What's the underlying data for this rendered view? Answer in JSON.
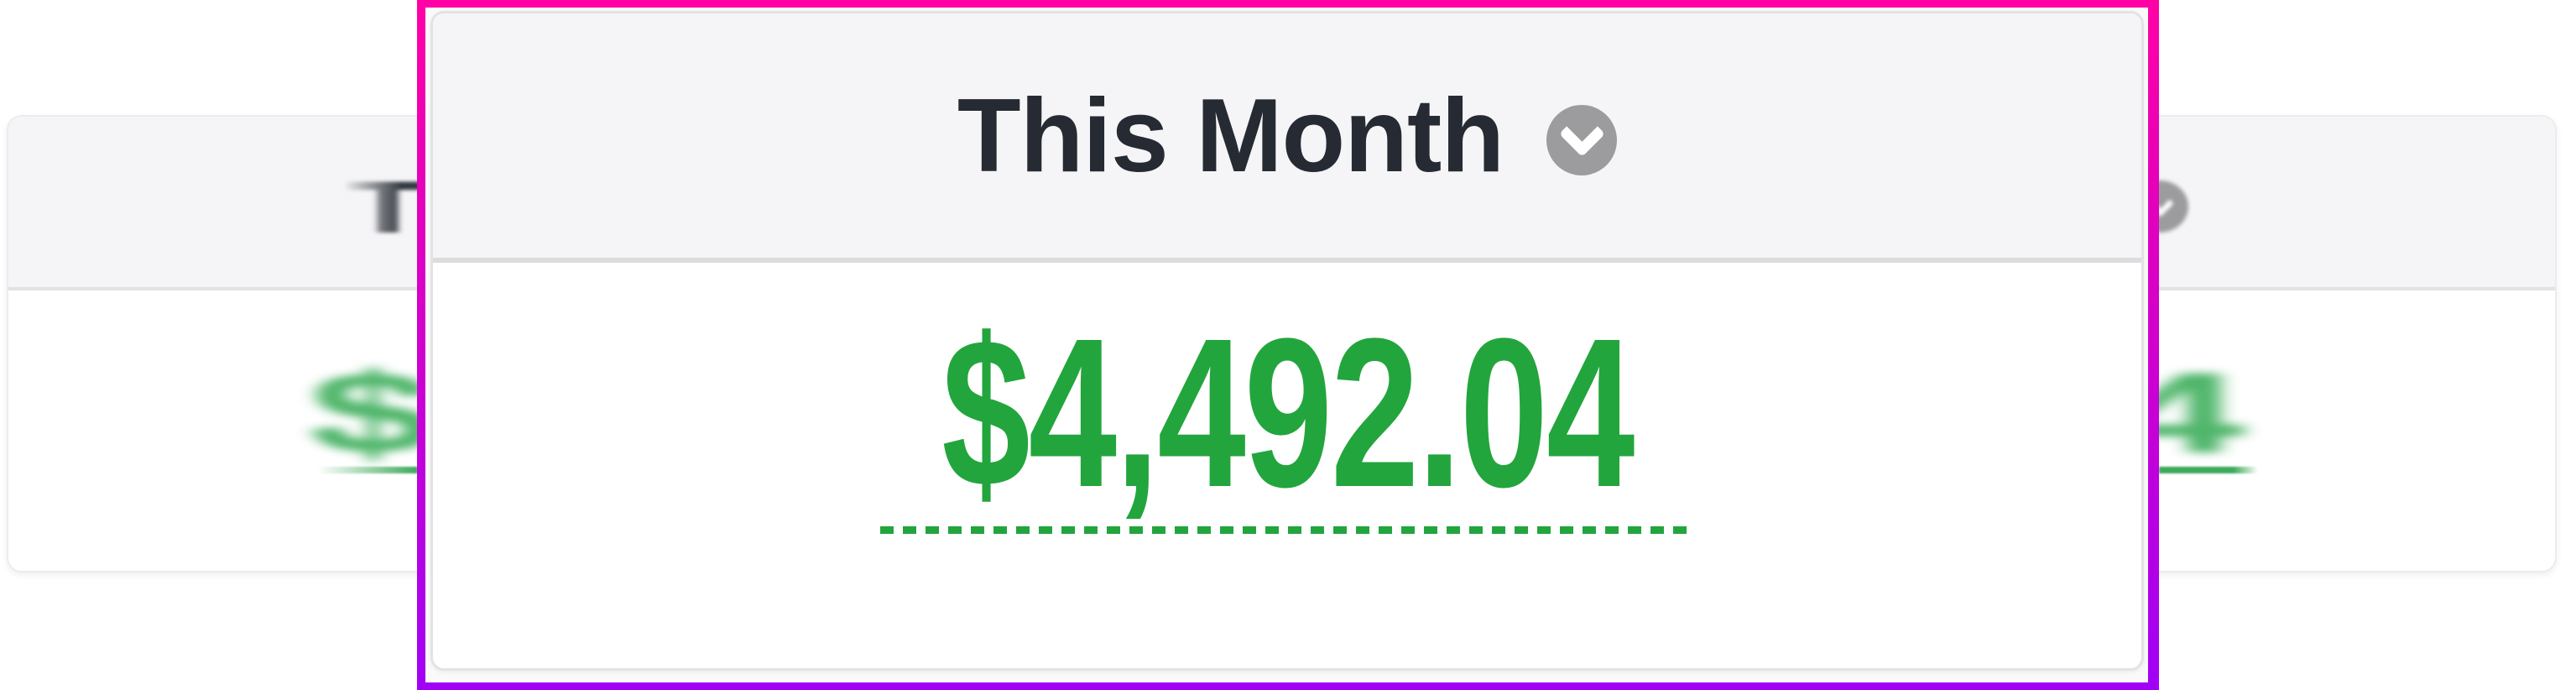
{
  "lens": {
    "title": "This Month",
    "amount": "$4,492.04"
  },
  "background": {
    "title_fragment": "T",
    "amount_fragment_left": "$",
    "amount_fragment_right": "4"
  },
  "colors": {
    "magenta": "#ff00a5",
    "purple": "#a100f5",
    "green": "#23a53d",
    "green-soft": "#3da95a",
    "title": "#262b33",
    "circle": "#9c9c9e",
    "header-bg": "#f5f5f7",
    "divider": "#dcdcde",
    "card-border": "#e3e3e6",
    "lens-bg": "#fafafb"
  },
  "icons": {
    "lens_dropdown": "chevron-down-icon",
    "background_dropdown": "chevron-down-icon"
  }
}
